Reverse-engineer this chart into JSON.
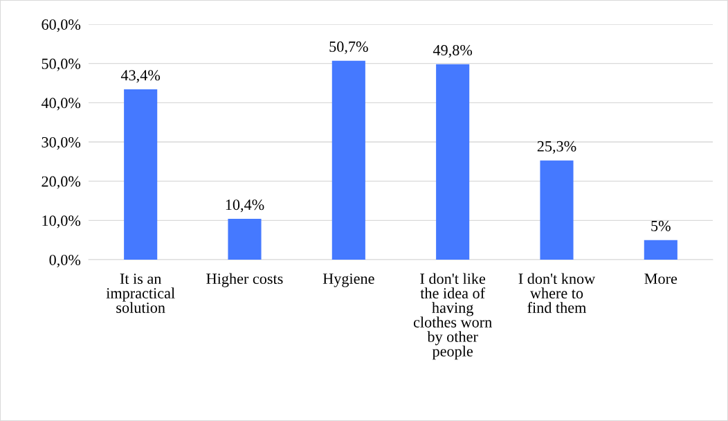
{
  "chart_data": {
    "type": "bar",
    "categories": [
      "It is an\nimpractical\nsolution",
      "Higher costs",
      "Hygiene",
      "I don't like\nthe idea of\nhaving\nclothes worn\nby other\npeople",
      "I don't know\nwhere to\nfind them",
      "More"
    ],
    "values": [
      43.4,
      10.4,
      50.7,
      49.8,
      25.3,
      5
    ],
    "value_labels": [
      "43,4%",
      "10,4%",
      "50,7%",
      "49,8%",
      "25,3%",
      "5%"
    ],
    "color": "#4579ff",
    "ylim": [
      0,
      60
    ],
    "yticks": [
      {
        "value": 0,
        "label": "0,0%"
      },
      {
        "value": 10,
        "label": "10,0%"
      },
      {
        "value": 20,
        "label": "20,0%"
      },
      {
        "value": 30,
        "label": "30,0%"
      },
      {
        "value": 40,
        "label": "40,0%"
      },
      {
        "value": 50,
        "label": "50,0%"
      },
      {
        "value": 60,
        "label": "60,0%"
      }
    ],
    "grid": "y"
  }
}
